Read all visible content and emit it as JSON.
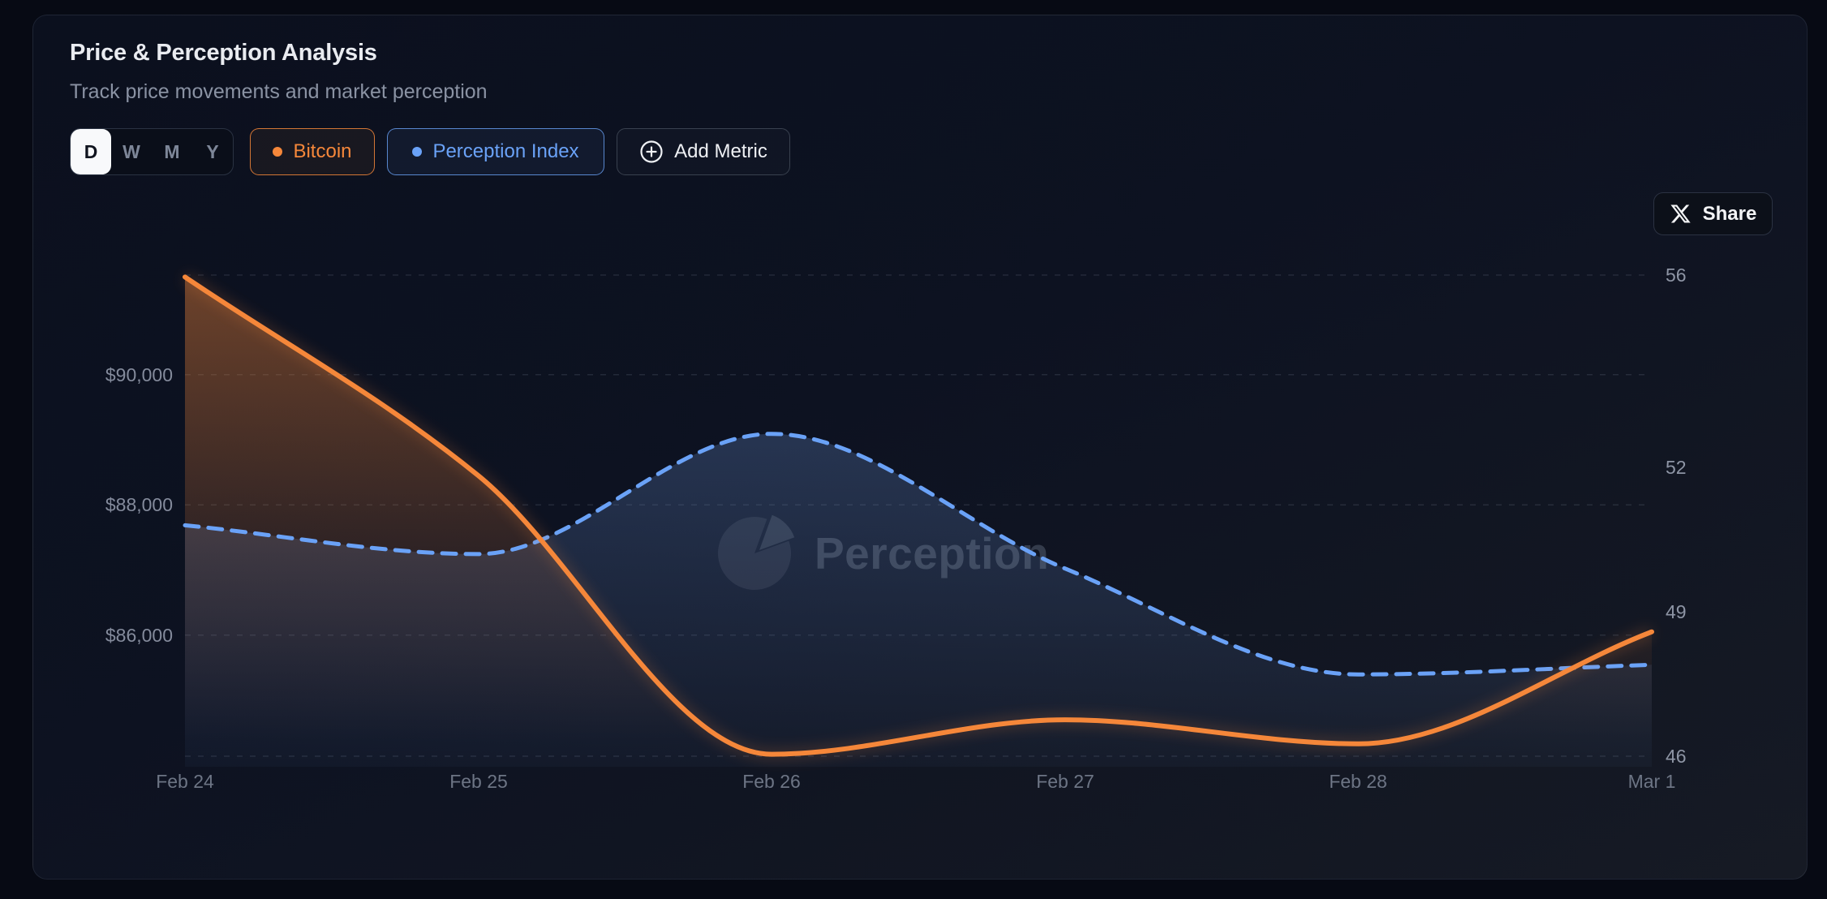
{
  "header": {
    "title": "Price & Perception Analysis",
    "subtitle": "Track price movements and market perception"
  },
  "controls": {
    "range_options": [
      "D",
      "W",
      "M",
      "Y"
    ],
    "range_selected": "D",
    "series_toggles": [
      {
        "label": "Bitcoin",
        "color": "#f5873a"
      },
      {
        "label": "Perception Index",
        "color": "#6aa2f7"
      }
    ],
    "add_metric_label": "Add Metric"
  },
  "share": {
    "label": "Share"
  },
  "colors": {
    "bitcoin_accent": "#f5873a",
    "perception_accent": "#6aa2f7",
    "page_background": "#070a14",
    "grid_line": "rgba(148,160,180,0.17)"
  },
  "chart_data": {
    "type": "line",
    "title": "Price & Perception Analysis",
    "x_labels": [
      "Feb 24",
      "Feb 25",
      "Feb 26",
      "Feb 27",
      "Feb 28",
      "Mar 1"
    ],
    "series": [
      {
        "name": "Bitcoin",
        "axis": "left",
        "color": "#f5873a",
        "line_style": "solid",
        "unit": "USD",
        "values": [
          91500,
          88450,
          84170,
          84700,
          84330,
          86050
        ]
      },
      {
        "name": "Perception Index",
        "axis": "right",
        "color": "#6aa2f7",
        "line_style": "dashed",
        "unit": "index",
        "values": [
          50.8,
          50.2,
          52.7,
          49.9,
          47.7,
          47.9
        ]
      }
    ],
    "left_axis": {
      "min": 84140,
      "max": 91530,
      "ticks": [
        {
          "label": "$90,000",
          "value": 90000
        },
        {
          "label": "$88,000",
          "value": 88000
        },
        {
          "label": "$86,000",
          "value": 86000
        }
      ]
    },
    "right_axis": {
      "min": 46,
      "max": 56,
      "ticks": [
        {
          "label": "56",
          "value": 56
        },
        {
          "label": "52",
          "value": 52
        },
        {
          "label": "49",
          "value": 49
        },
        {
          "label": "46",
          "value": 46
        }
      ]
    },
    "grid": {
      "style": "dashed",
      "horizontal_only": true
    },
    "legend_position": "top-left toggle chips",
    "watermark": "Perception"
  }
}
